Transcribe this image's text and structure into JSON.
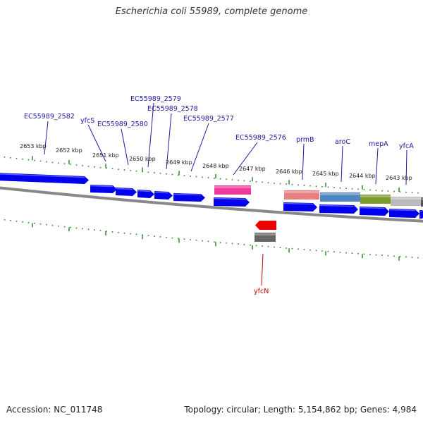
{
  "title": "Escherichia coli 55989, complete genome",
  "footer": {
    "accession": "Accession: NC_011748",
    "summary": "Topology: circular; Length: 5,154,862 bp; Genes: 4,984"
  },
  "colors": {
    "forward_gene": "#0000ee",
    "reverse_gene": "#ee0000",
    "label_forward": "#1a1aa0",
    "label_reverse": "#cc0000",
    "tick": "#2a8a2a",
    "backbone": "#888888",
    "magenta_feature": "#f0399a",
    "salmon_feature": "#e88080",
    "steel_feature": "#4d86c0",
    "olive_feature": "#7a9a2a",
    "grey_feature": "#bbbbbb",
    "dark_feature": "#666666"
  },
  "scale_labels": [
    "2653 kbp",
    "2652 kbp",
    "2651 kbp",
    "2650 kbp",
    "2649 kbp",
    "2648 kbp",
    "2647 kbp",
    "2646 kbp",
    "2645 kbp",
    "2644 kbp",
    "2643 kbp"
  ],
  "genes_forward": [
    "EC55989_2582",
    "yfcS",
    "EC55989_2580",
    "EC55989_2579",
    "EC55989_2578",
    "EC55989_2577",
    "EC55989_2576",
    "prmB",
    "aroC",
    "mepA",
    "yfcA"
  ],
  "genes_reverse": [
    "yfcN"
  ]
}
